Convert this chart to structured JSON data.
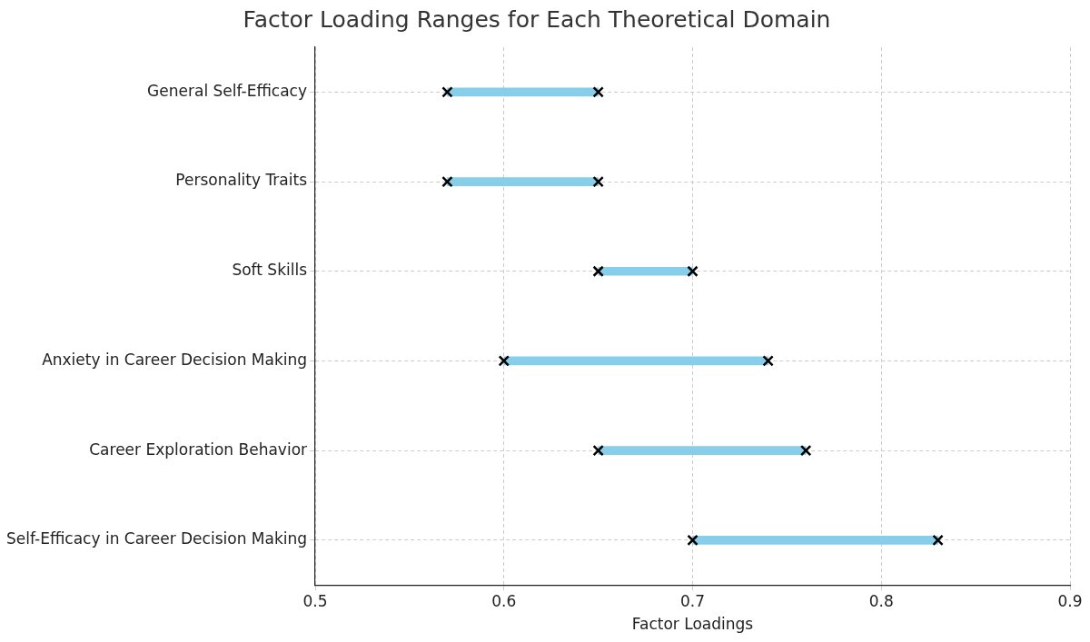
{
  "chart_data": {
    "type": "bar",
    "orientation": "horizontal",
    "title": "Factor Loading Ranges for Each Theoretical Domain",
    "xlabel": "Factor Loadings",
    "categories": [
      "General Self-Efficacy",
      "Personality Traits",
      "Soft Skills",
      "Anxiety in Career Decision Making",
      "Career Exploration Behavior",
      "Self-Efficacy in Career Decision Making"
    ],
    "series": [
      {
        "type": "bar",
        "color": "#87ceeb",
        "base": [
          0.57,
          0.57,
          0.65,
          0.6,
          0.65,
          0.7
        ],
        "values": [
          0.08,
          0.08,
          0.05,
          0.14,
          0.11,
          0.13
        ]
      },
      {
        "type": "scatter",
        "color": "#000000",
        "values": [
          0.57,
          0.57,
          0.65,
          0.6,
          0.65,
          0.7
        ]
      },
      {
        "type": "scatter",
        "color": "#000000",
        "values": [
          0.65,
          0.65,
          0.7,
          0.74,
          0.76,
          0.83
        ]
      }
    ],
    "marker": "cross",
    "xlim": [
      0.5,
      0.9
    ],
    "xticks": [
      0.5,
      0.6,
      0.7,
      0.8,
      0.9
    ],
    "grid": true
  }
}
